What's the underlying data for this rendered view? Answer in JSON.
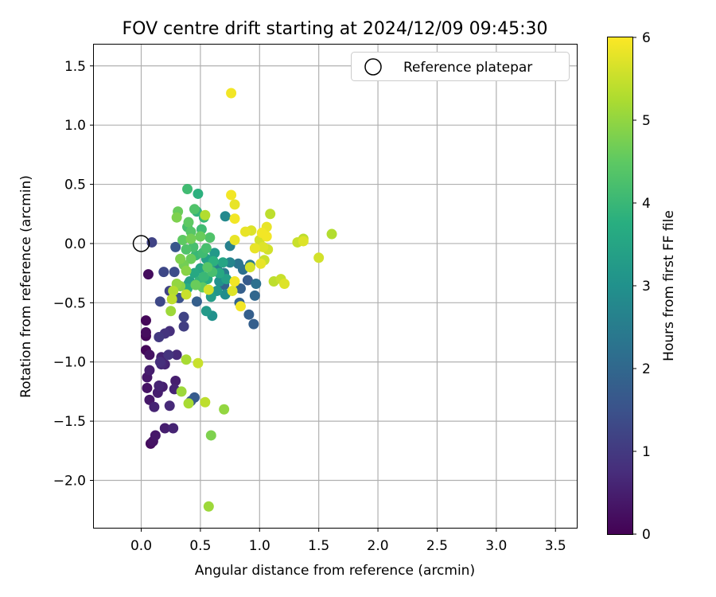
{
  "chart_data": {
    "type": "scatter",
    "title": "FOV centre drift starting at 2024/12/09 09:45:30",
    "xlabel": "Angular distance from reference (arcmin)",
    "ylabel": "Rotation from reference (arcmin)",
    "xlim": [
      -0.4,
      3.68
    ],
    "ylim": [
      -2.4,
      1.68
    ],
    "xticks": [
      0.0,
      0.5,
      1.0,
      1.5,
      2.0,
      2.5,
      3.0,
      3.5
    ],
    "yticks": [
      -2.0,
      -1.5,
      -1.0,
      -0.5,
      0.0,
      0.5,
      1.0,
      1.5
    ],
    "xtick_labels": [
      "0.0",
      "0.5",
      "1.0",
      "1.5",
      "2.0",
      "2.5",
      "3.0",
      "3.5"
    ],
    "ytick_labels": [
      "−2.0",
      "−1.5",
      "−1.0",
      "−0.5",
      "0.0",
      "0.5",
      "1.0",
      "1.5"
    ],
    "grid": true,
    "legend": {
      "position": "top-right",
      "entries": [
        "Reference platepar"
      ]
    },
    "reference_point": {
      "x": 0.0,
      "y": 0.0
    },
    "colorbar": {
      "label": "Hours from first FF file",
      "range": [
        0,
        6
      ],
      "ticks": [
        0,
        1,
        2,
        3,
        4,
        5,
        6
      ],
      "colormap": "viridis"
    },
    "points": [
      {
        "x": 0.06,
        "y": -0.26,
        "h": 0.2
      },
      {
        "x": 0.04,
        "y": -0.65,
        "h": 0.1
      },
      {
        "x": 0.04,
        "y": -0.75,
        "h": 0.2
      },
      {
        "x": 0.04,
        "y": -0.78,
        "h": 0.1
      },
      {
        "x": 0.04,
        "y": -0.9,
        "h": 0.1
      },
      {
        "x": 0.07,
        "y": -0.94,
        "h": 0.3
      },
      {
        "x": 0.05,
        "y": -1.13,
        "h": 0.4
      },
      {
        "x": 0.07,
        "y": -1.07,
        "h": 0.5
      },
      {
        "x": 0.05,
        "y": -1.22,
        "h": 0.3
      },
      {
        "x": 0.07,
        "y": -1.32,
        "h": 0.4
      },
      {
        "x": 0.08,
        "y": -1.69,
        "h": 0.2
      },
      {
        "x": 0.1,
        "y": -1.67,
        "h": 0.3
      },
      {
        "x": 0.12,
        "y": -1.62,
        "h": 0.4
      },
      {
        "x": 0.11,
        "y": -1.38,
        "h": 0.6
      },
      {
        "x": 0.14,
        "y": -1.26,
        "h": 0.5
      },
      {
        "x": 0.15,
        "y": -1.2,
        "h": 0.6
      },
      {
        "x": 0.18,
        "y": -1.21,
        "h": 0.5
      },
      {
        "x": 0.2,
        "y": -1.56,
        "h": 0.5
      },
      {
        "x": 0.27,
        "y": -1.56,
        "h": 0.6
      },
      {
        "x": 0.24,
        "y": -1.37,
        "h": 0.7
      },
      {
        "x": 0.29,
        "y": -1.16,
        "h": 0.5
      },
      {
        "x": 0.28,
        "y": -1.23,
        "h": 0.6
      },
      {
        "x": 0.17,
        "y": -0.96,
        "h": 0.6
      },
      {
        "x": 0.16,
        "y": -1.0,
        "h": 0.8
      },
      {
        "x": 0.2,
        "y": -1.02,
        "h": 0.6
      },
      {
        "x": 0.23,
        "y": -0.94,
        "h": 0.9
      },
      {
        "x": 0.3,
        "y": -0.94,
        "h": 0.7
      },
      {
        "x": 0.17,
        "y": -1.02,
        "h": 0.7
      },
      {
        "x": 0.15,
        "y": -0.79,
        "h": 1.0
      },
      {
        "x": 0.2,
        "y": -0.76,
        "h": 0.9
      },
      {
        "x": 0.24,
        "y": -0.74,
        "h": 0.8
      },
      {
        "x": 0.36,
        "y": -0.7,
        "h": 1.1
      },
      {
        "x": 0.36,
        "y": -0.62,
        "h": 1.2
      },
      {
        "x": 0.16,
        "y": -0.49,
        "h": 1.3
      },
      {
        "x": 0.24,
        "y": -0.4,
        "h": 1.2
      },
      {
        "x": 0.19,
        "y": -0.24,
        "h": 1.3
      },
      {
        "x": 0.28,
        "y": -0.24,
        "h": 1.4
      },
      {
        "x": 0.09,
        "y": 0.01,
        "h": 1.2
      },
      {
        "x": 0.29,
        "y": -0.03,
        "h": 1.6
      },
      {
        "x": 0.32,
        "y": -0.46,
        "h": 1.5
      },
      {
        "x": 0.45,
        "y": -1.3,
        "h": 1.7
      },
      {
        "x": 0.42,
        "y": -1.33,
        "h": 1.6
      },
      {
        "x": 0.47,
        "y": -0.49,
        "h": 1.8
      },
      {
        "x": 0.7,
        "y": -0.35,
        "h": 1.9
      },
      {
        "x": 0.83,
        "y": -0.5,
        "h": 1.9
      },
      {
        "x": 0.84,
        "y": -0.38,
        "h": 1.8
      },
      {
        "x": 0.9,
        "y": -0.31,
        "h": 1.7
      },
      {
        "x": 0.96,
        "y": -0.44,
        "h": 2.0
      },
      {
        "x": 0.91,
        "y": -0.6,
        "h": 1.8
      },
      {
        "x": 0.95,
        "y": -0.68,
        "h": 1.8
      },
      {
        "x": 0.97,
        "y": -0.34,
        "h": 2.2
      },
      {
        "x": 0.92,
        "y": -0.18,
        "h": 2.4
      },
      {
        "x": 0.86,
        "y": -0.22,
        "h": 2.2
      },
      {
        "x": 0.82,
        "y": -0.17,
        "h": 2.3
      },
      {
        "x": 0.7,
        "y": -0.25,
        "h": 2.5
      },
      {
        "x": 0.64,
        "y": -0.21,
        "h": 2.6
      },
      {
        "x": 0.75,
        "y": -0.02,
        "h": 2.6
      },
      {
        "x": 0.71,
        "y": 0.23,
        "h": 2.8
      },
      {
        "x": 0.6,
        "y": -0.61,
        "h": 3.0
      },
      {
        "x": 0.55,
        "y": -0.57,
        "h": 3.2
      },
      {
        "x": 0.71,
        "y": -0.43,
        "h": 2.9
      },
      {
        "x": 0.64,
        "y": -0.4,
        "h": 3.1
      },
      {
        "x": 0.59,
        "y": -0.45,
        "h": 3.3
      },
      {
        "x": 0.66,
        "y": -0.32,
        "h": 3.0
      },
      {
        "x": 0.75,
        "y": -0.16,
        "h": 2.7
      },
      {
        "x": 0.62,
        "y": -0.08,
        "h": 3.2
      },
      {
        "x": 0.55,
        "y": -0.13,
        "h": 3.4
      },
      {
        "x": 0.5,
        "y": -0.21,
        "h": 3.5
      },
      {
        "x": 0.45,
        "y": -0.25,
        "h": 3.6
      },
      {
        "x": 0.41,
        "y": -0.32,
        "h": 3.4
      },
      {
        "x": 0.4,
        "y": -0.34,
        "h": 3.3
      },
      {
        "x": 0.39,
        "y": -0.38,
        "h": 3.7
      },
      {
        "x": 0.48,
        "y": 0.42,
        "h": 3.8
      },
      {
        "x": 0.39,
        "y": 0.46,
        "h": 4.1
      },
      {
        "x": 0.47,
        "y": 0.27,
        "h": 3.9
      },
      {
        "x": 0.53,
        "y": 0.22,
        "h": 4.0
      },
      {
        "x": 0.51,
        "y": 0.12,
        "h": 4.1
      },
      {
        "x": 0.45,
        "y": 0.29,
        "h": 4.3
      },
      {
        "x": 0.39,
        "y": 0.14,
        "h": 4.2
      },
      {
        "x": 0.42,
        "y": 0.1,
        "h": 4.4
      },
      {
        "x": 0.35,
        "y": 0.03,
        "h": 4.5
      },
      {
        "x": 0.38,
        "y": -0.05,
        "h": 4.3
      },
      {
        "x": 0.44,
        "y": -0.03,
        "h": 4.2
      },
      {
        "x": 0.46,
        "y": -0.1,
        "h": 4.0
      },
      {
        "x": 0.52,
        "y": -0.08,
        "h": 4.1
      },
      {
        "x": 0.55,
        "y": -0.04,
        "h": 4.2
      },
      {
        "x": 0.58,
        "y": 0.05,
        "h": 4.3
      },
      {
        "x": 0.61,
        "y": -0.15,
        "h": 3.8
      },
      {
        "x": 0.66,
        "y": -0.25,
        "h": 3.6
      },
      {
        "x": 0.69,
        "y": -0.16,
        "h": 3.5
      },
      {
        "x": 0.72,
        "y": -0.3,
        "h": 3.4
      },
      {
        "x": 0.56,
        "y": -0.3,
        "h": 3.7
      },
      {
        "x": 0.49,
        "y": -0.32,
        "h": 3.9
      },
      {
        "x": 0.53,
        "y": -0.28,
        "h": 4.0
      },
      {
        "x": 0.42,
        "y": -0.13,
        "h": 4.6
      },
      {
        "x": 0.36,
        "y": -0.18,
        "h": 4.7
      },
      {
        "x": 0.33,
        "y": -0.13,
        "h": 4.8
      },
      {
        "x": 0.38,
        "y": -0.23,
        "h": 4.9
      },
      {
        "x": 0.3,
        "y": 0.22,
        "h": 4.8
      },
      {
        "x": 0.31,
        "y": 0.27,
        "h": 4.6
      },
      {
        "x": 0.4,
        "y": 0.18,
        "h": 4.5
      },
      {
        "x": 0.42,
        "y": 0.04,
        "h": 4.7
      },
      {
        "x": 0.5,
        "y": 0.06,
        "h": 4.6
      },
      {
        "x": 0.46,
        "y": -0.35,
        "h": 4.6
      },
      {
        "x": 0.52,
        "y": -0.37,
        "h": 4.5
      },
      {
        "x": 0.6,
        "y": -0.24,
        "h": 4.2
      },
      {
        "x": 0.56,
        "y": -0.2,
        "h": 4.4
      },
      {
        "x": 0.3,
        "y": -0.34,
        "h": 5.0
      },
      {
        "x": 0.27,
        "y": -0.4,
        "h": 5.3
      },
      {
        "x": 0.26,
        "y": -0.47,
        "h": 5.4
      },
      {
        "x": 0.33,
        "y": -0.36,
        "h": 4.9
      },
      {
        "x": 0.25,
        "y": -0.57,
        "h": 5.1
      },
      {
        "x": 0.38,
        "y": -0.43,
        "h": 5.5
      },
      {
        "x": 0.54,
        "y": 0.24,
        "h": 5.3
      },
      {
        "x": 0.57,
        "y": -0.39,
        "h": 5.6
      },
      {
        "x": 0.38,
        "y": -0.98,
        "h": 5.2
      },
      {
        "x": 0.48,
        "y": -1.01,
        "h": 5.5
      },
      {
        "x": 0.34,
        "y": -1.25,
        "h": 5.1
      },
      {
        "x": 0.4,
        "y": -1.35,
        "h": 5.2
      },
      {
        "x": 0.54,
        "y": -1.34,
        "h": 5.4
      },
      {
        "x": 0.7,
        "y": -1.4,
        "h": 5.0
      },
      {
        "x": 0.59,
        "y": -1.62,
        "h": 4.8
      },
      {
        "x": 0.57,
        "y": -2.22,
        "h": 5.1
      },
      {
        "x": 0.76,
        "y": 1.27,
        "h": 5.9
      },
      {
        "x": 0.76,
        "y": 0.41,
        "h": 5.9
      },
      {
        "x": 0.79,
        "y": 0.33,
        "h": 5.8
      },
      {
        "x": 0.79,
        "y": 0.21,
        "h": 5.9
      },
      {
        "x": 0.79,
        "y": 0.03,
        "h": 5.8
      },
      {
        "x": 0.79,
        "y": -0.32,
        "h": 5.9
      },
      {
        "x": 0.77,
        "y": -0.4,
        "h": 5.7
      },
      {
        "x": 0.84,
        "y": -0.53,
        "h": 5.9
      },
      {
        "x": 0.92,
        "y": -0.2,
        "h": 5.6
      },
      {
        "x": 0.88,
        "y": 0.1,
        "h": 5.8
      },
      {
        "x": 0.93,
        "y": 0.11,
        "h": 5.7
      },
      {
        "x": 0.96,
        "y": -0.04,
        "h": 5.8
      },
      {
        "x": 1.0,
        "y": 0.03,
        "h": 5.6
      },
      {
        "x": 1.02,
        "y": 0.09,
        "h": 5.9
      },
      {
        "x": 1.03,
        "y": -0.03,
        "h": 5.7
      },
      {
        "x": 1.06,
        "y": 0.06,
        "h": 5.9
      },
      {
        "x": 1.06,
        "y": 0.14,
        "h": 5.8
      },
      {
        "x": 1.07,
        "y": -0.05,
        "h": 5.6
      },
      {
        "x": 1.04,
        "y": -0.14,
        "h": 5.5
      },
      {
        "x": 1.01,
        "y": -0.17,
        "h": 5.8
      },
      {
        "x": 1.09,
        "y": 0.25,
        "h": 5.4
      },
      {
        "x": 1.12,
        "y": -0.32,
        "h": 5.4
      },
      {
        "x": 1.18,
        "y": -0.3,
        "h": 5.5
      },
      {
        "x": 1.21,
        "y": -0.34,
        "h": 5.7
      },
      {
        "x": 1.32,
        "y": 0.01,
        "h": 5.5
      },
      {
        "x": 1.37,
        "y": 0.04,
        "h": 5.4
      },
      {
        "x": 1.37,
        "y": 0.02,
        "h": 5.7
      },
      {
        "x": 1.5,
        "y": -0.12,
        "h": 5.6
      },
      {
        "x": 1.61,
        "y": 0.08,
        "h": 5.3
      }
    ]
  }
}
